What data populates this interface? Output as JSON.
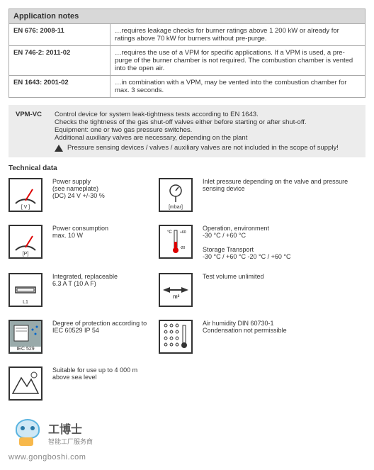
{
  "appnotes": {
    "header": "Application notes",
    "rows": [
      {
        "std": "EN 676: 2008-11",
        "desc": "…requires leakage checks for burner ratings above 1 200 kW or already for ratings above 70 kW for burners without pre-purge."
      },
      {
        "std": "EN 746-2: 2011-02",
        "desc": "…requires the use of a VPM for specific applications. If a VPM is used, a pre-purge of the burner chamber is not required. The combustion chamber is vented into the open air."
      },
      {
        "std": "EN 1643: 2001-02",
        "desc": "…in combination with a VPM, may be vented into the combustion chamber for max. 3 seconds."
      }
    ]
  },
  "vpm": {
    "label": "VPM-VC",
    "line1": "Control device for system leak-tightness tests according to EN 1643.",
    "line2": "Checks the tightness of the gas shut-off valves either before starting or after shut-off.",
    "line3": "Equipment: one or two gas pressure switches.",
    "line4": "Additional auxiliary valves are necessary, depending on the plant",
    "warn": "Pressure sensing devices / valves / auxiliary valves are not included in the scope of supply!"
  },
  "tech": {
    "header": "Technical data",
    "rows": [
      {
        "iconL": "[ V ]",
        "textL": "Power supply\n(see nameplate)\n(DC) 24 V +/-30 %",
        "iconM": "mbar",
        "textR": "Inlet pressure depending on the valve and pressure sensing device"
      },
      {
        "iconL": "[P]",
        "textL": "Power consumption\nmax. 10 W",
        "iconM": "therm",
        "textR": "Operation, environment\n-30 °C / +60 °C\n\nStorage            Transport\n-30 °C / +60 °C  -20 °C / +60 °C"
      },
      {
        "iconL": "L1",
        "textL": "Integrated, replaceable\n6.3 A T (10 A F)",
        "iconM": "m3",
        "textR": "Test volume unlimited"
      },
      {
        "iconL": "IEC 529",
        "textL": "Degree of protection according to\nIEC 60529 IP 54",
        "iconM": "drops",
        "textR": "Air humidity DIN 60730-1\nCondensation not permissible"
      },
      {
        "iconL": "mountain",
        "textL": "Suitable for use up to 4 000 m\nabove sea level",
        "iconM": "",
        "textR": ""
      }
    ]
  },
  "watermark": {
    "big": "工博士",
    "small": "智能工厂服务商",
    "url": "www.gongboshi.com"
  }
}
